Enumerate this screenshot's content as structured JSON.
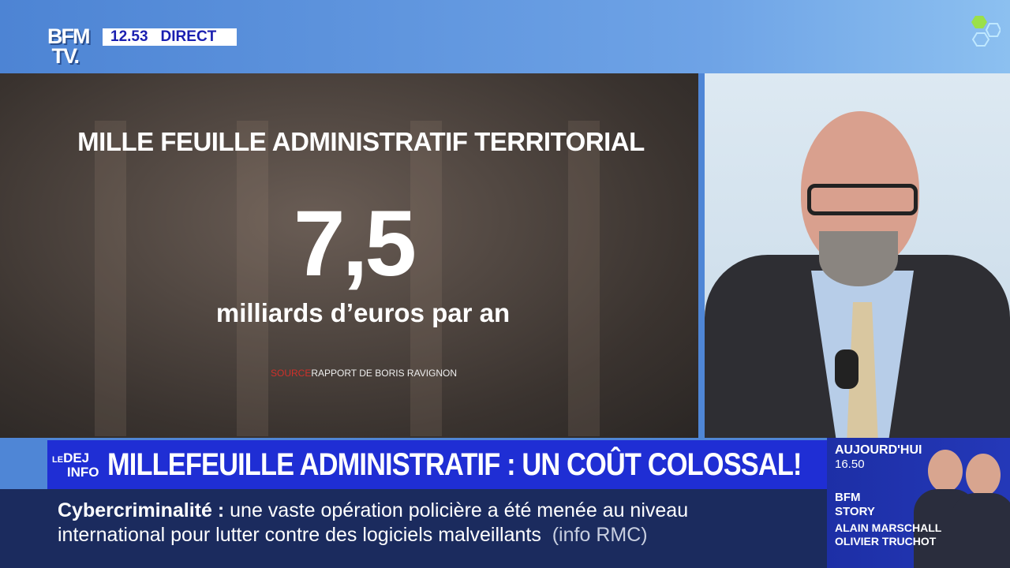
{
  "channel": {
    "logo": "BFM TV.",
    "time": "12.53",
    "status": "DIRECT"
  },
  "graphic": {
    "title": "MILLE FEUILLE ADMINISTRATIF TERRITORIAL",
    "value": "7,5",
    "unit": "milliards d’euros par an",
    "source_label": "SOURCE",
    "source": "RAPPORT DE BORIS RAVIGNON"
  },
  "banner": {
    "show_logo": "LEDEJINFO",
    "headline": "MILLEFEUILLE ADMINISTRATIF : UN COÛT COLOSSAL!"
  },
  "ticker": {
    "topic": "Cybercriminalité :",
    "line1": "une vaste opération policière a été menée au niveau",
    "line2": "international pour lutter contre des logiciels malveillants",
    "credit": "(info RMC)"
  },
  "promo": {
    "day": "AUJOURD'HUI",
    "time": "16.50",
    "show": "BFM STORY",
    "host1": "ALAIN MARSCHALL",
    "host2": "OLIVIER TRUCHOT"
  },
  "colors": {
    "banner": "#1f2ed4",
    "ticker": "#1b2b5e",
    "accent": "#6fd04c",
    "source": "#d0302a"
  }
}
